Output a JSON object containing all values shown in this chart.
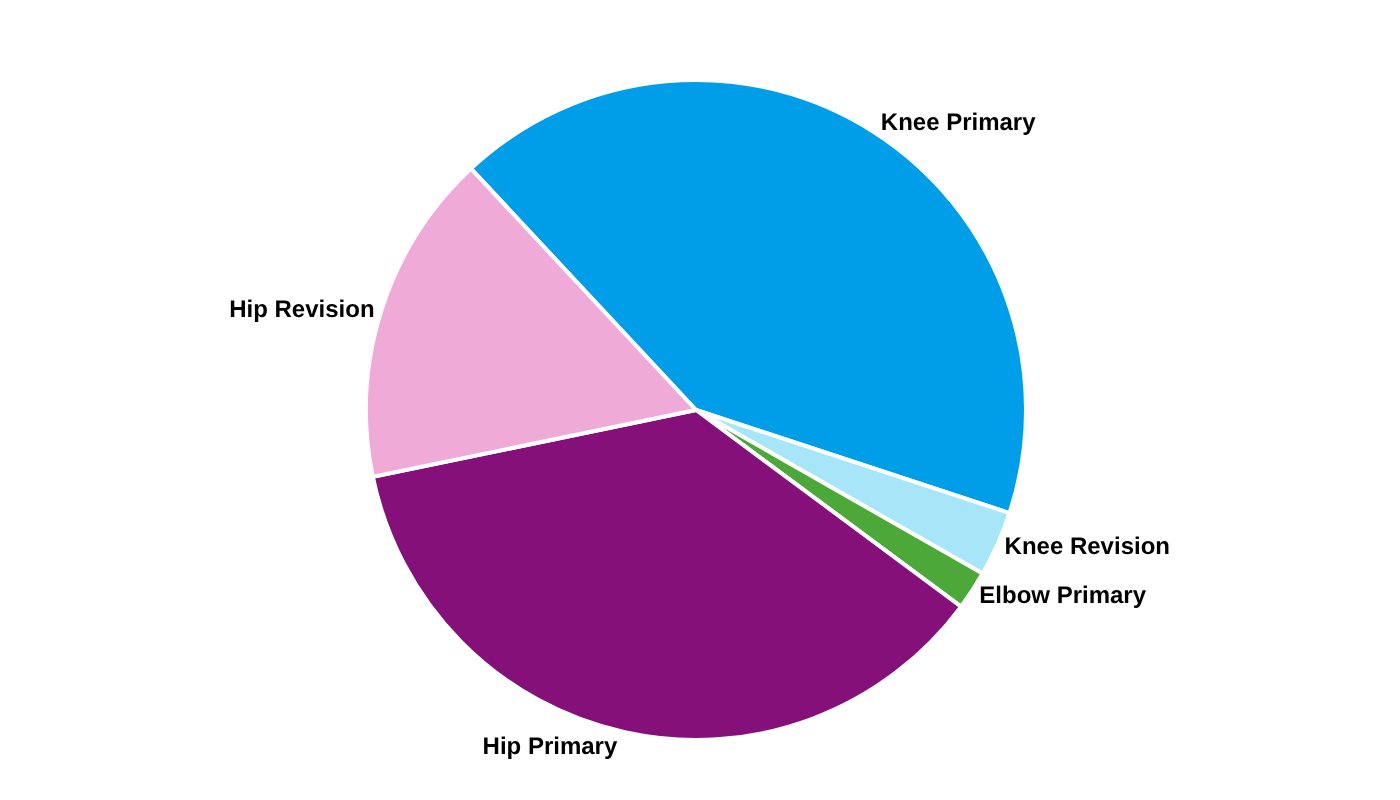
{
  "chart_data": {
    "type": "pie",
    "categories": [
      "Knee Primary",
      "Knee Revision",
      "Elbow Primary",
      "Hip Primary",
      "Hip Revision"
    ],
    "values": [
      42,
      3.2,
      1.9,
      36.6,
      16.3
    ],
    "colors": [
      "#009ee8",
      "#a6e6f8",
      "#4ca838",
      "#861079",
      "#f0aad8"
    ],
    "legend": false
  }
}
